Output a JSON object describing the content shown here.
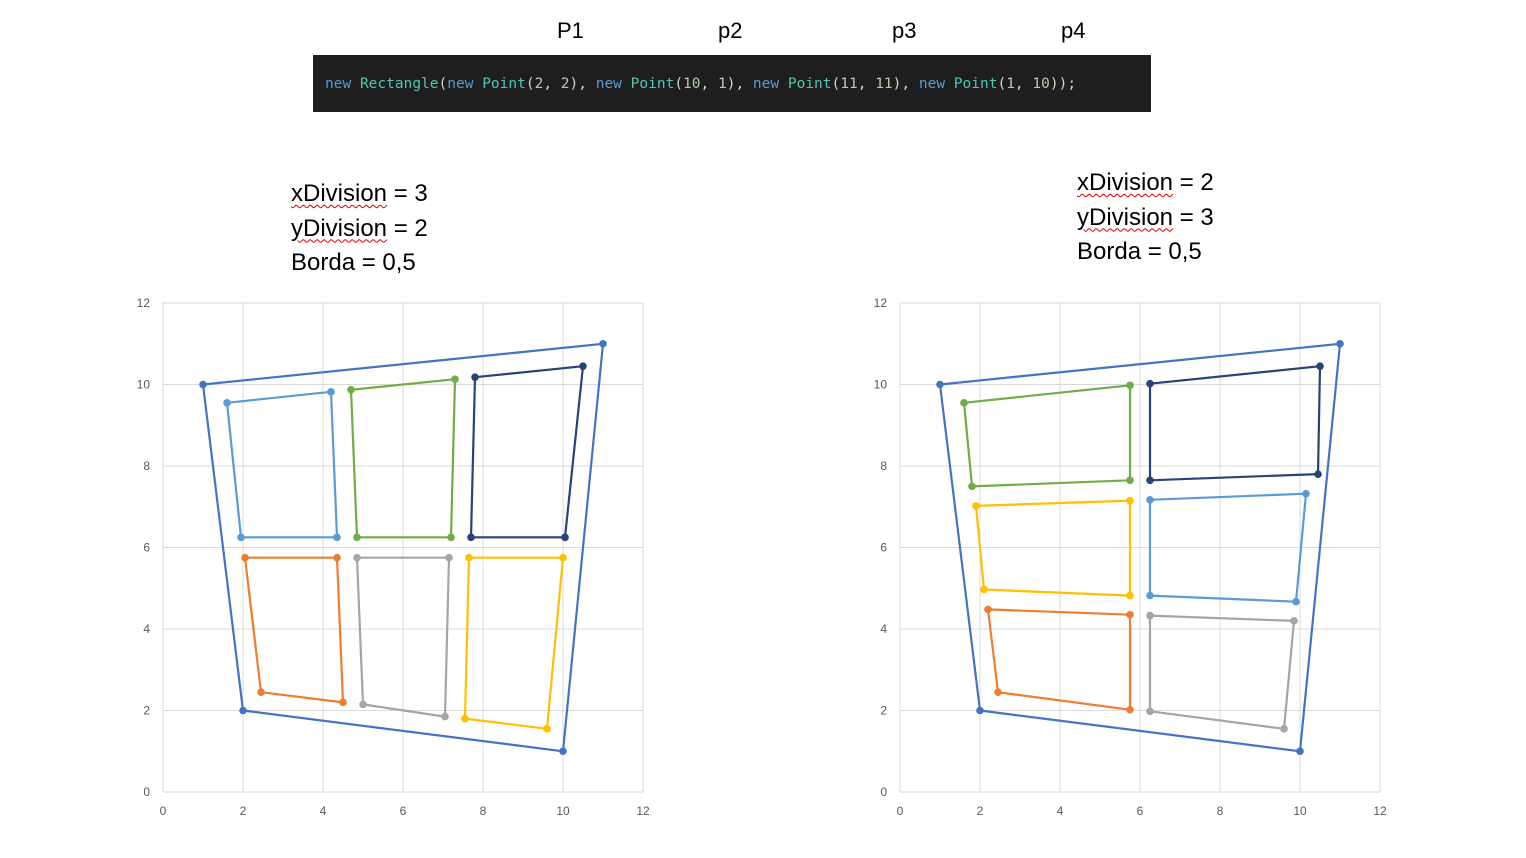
{
  "point_labels": [
    "P1",
    "p2",
    "p3",
    "p4"
  ],
  "code": [
    {
      "text": "new",
      "color": "#569cd6"
    },
    {
      "text": " ",
      "color": "#d4d4d4"
    },
    {
      "text": "Rectangle",
      "color": "#4ec9b0"
    },
    {
      "text": "(",
      "color": "#d4d4d4"
    },
    {
      "text": "new",
      "color": "#569cd6"
    },
    {
      "text": " ",
      "color": "#d4d4d4"
    },
    {
      "text": "Point",
      "color": "#4ec9b0"
    },
    {
      "text": "(",
      "color": "#d4d4d4"
    },
    {
      "text": "2",
      "color": "#b5cea8"
    },
    {
      "text": ", ",
      "color": "#d4d4d4"
    },
    {
      "text": "2",
      "color": "#b5cea8"
    },
    {
      "text": "), ",
      "color": "#d4d4d4"
    },
    {
      "text": "new",
      "color": "#569cd6"
    },
    {
      "text": " ",
      "color": "#d4d4d4"
    },
    {
      "text": "Point",
      "color": "#4ec9b0"
    },
    {
      "text": "(",
      "color": "#d4d4d4"
    },
    {
      "text": "10",
      "color": "#b5cea8"
    },
    {
      "text": ", ",
      "color": "#d4d4d4"
    },
    {
      "text": "1",
      "color": "#b5cea8"
    },
    {
      "text": "), ",
      "color": "#d4d4d4"
    },
    {
      "text": "new",
      "color": "#569cd6"
    },
    {
      "text": " ",
      "color": "#d4d4d4"
    },
    {
      "text": "Point",
      "color": "#4ec9b0"
    },
    {
      "text": "(",
      "color": "#d4d4d4"
    },
    {
      "text": "11",
      "color": "#b5cea8"
    },
    {
      "text": ", ",
      "color": "#d4d4d4"
    },
    {
      "text": "11",
      "color": "#b5cea8"
    },
    {
      "text": "), ",
      "color": "#d4d4d4"
    },
    {
      "text": "new",
      "color": "#569cd6"
    },
    {
      "text": " ",
      "color": "#d4d4d4"
    },
    {
      "text": "Point",
      "color": "#4ec9b0"
    },
    {
      "text": "(",
      "color": "#d4d4d4"
    },
    {
      "text": "1",
      "color": "#b5cea8"
    },
    {
      "text": ", ",
      "color": "#d4d4d4"
    },
    {
      "text": "10",
      "color": "#b5cea8"
    },
    {
      "text": "));",
      "color": "#d4d4d4"
    }
  ],
  "left_params": {
    "line1_var": "xDivision",
    "line1_rest": " = 3",
    "line2_var": "yDivision",
    "line2_rest": " = 2",
    "line3": "Borda = 0,5"
  },
  "right_params": {
    "line1_var": "xDivision",
    "line1_rest": " = 2",
    "line2_var": "yDivision",
    "line2_rest": " = 3",
    "line3": "Borda = 0,5"
  },
  "chart_data": [
    {
      "type": "scatter",
      "xlim": [
        0,
        12
      ],
      "ylim": [
        0,
        12
      ],
      "xticks": [
        0,
        2,
        4,
        6,
        8,
        10,
        12
      ],
      "yticks": [
        0,
        2,
        4,
        6,
        8,
        10,
        12
      ],
      "grid": true,
      "series": [
        {
          "color": "#4472c4",
          "points": [
            [
              1,
              10
            ],
            [
              11,
              11
            ],
            [
              10,
              1
            ],
            [
              2,
              2
            ],
            [
              1,
              10
            ]
          ]
        },
        {
          "color": "#5b9bd5",
          "points": [
            [
              1.6,
              9.55
            ],
            [
              4.2,
              9.82
            ],
            [
              4.35,
              6.25
            ],
            [
              1.95,
              6.25
            ],
            [
              1.6,
              9.55
            ]
          ]
        },
        {
          "color": "#70ad47",
          "points": [
            [
              4.7,
              9.87
            ],
            [
              7.3,
              10.13
            ],
            [
              7.2,
              6.25
            ],
            [
              4.85,
              6.25
            ],
            [
              4.7,
              9.87
            ]
          ]
        },
        {
          "color": "#264478",
          "points": [
            [
              7.8,
              10.18
            ],
            [
              10.5,
              10.45
            ],
            [
              10.05,
              6.25
            ],
            [
              7.7,
              6.25
            ],
            [
              7.8,
              10.18
            ]
          ]
        },
        {
          "color": "#ed7d31",
          "points": [
            [
              2.05,
              5.75
            ],
            [
              4.35,
              5.75
            ],
            [
              4.5,
              2.2
            ],
            [
              2.45,
              2.45
            ],
            [
              2.05,
              5.75
            ]
          ]
        },
        {
          "color": "#a5a5a5",
          "points": [
            [
              4.85,
              5.75
            ],
            [
              7.15,
              5.75
            ],
            [
              7.05,
              1.85
            ],
            [
              5,
              2.15
            ],
            [
              4.85,
              5.75
            ]
          ]
        },
        {
          "color": "#ffc000",
          "points": [
            [
              7.65,
              5.75
            ],
            [
              10,
              5.75
            ],
            [
              9.6,
              1.55
            ],
            [
              7.55,
              1.8
            ],
            [
              7.65,
              5.75
            ]
          ]
        }
      ]
    },
    {
      "type": "scatter",
      "xlim": [
        0,
        12
      ],
      "ylim": [
        0,
        12
      ],
      "xticks": [
        0,
        2,
        4,
        6,
        8,
        10,
        12
      ],
      "yticks": [
        0,
        2,
        4,
        6,
        8,
        10,
        12
      ],
      "grid": true,
      "series": [
        {
          "color": "#4472c4",
          "points": [
            [
              1,
              10
            ],
            [
              11,
              11
            ],
            [
              10,
              1
            ],
            [
              2,
              2
            ],
            [
              1,
              10
            ]
          ]
        },
        {
          "color": "#70ad47",
          "points": [
            [
              1.6,
              9.55
            ],
            [
              5.75,
              9.98
            ],
            [
              5.75,
              7.65
            ],
            [
              1.8,
              7.5
            ],
            [
              1.6,
              9.55
            ]
          ]
        },
        {
          "color": "#264478",
          "points": [
            [
              6.25,
              10.02
            ],
            [
              10.5,
              10.45
            ],
            [
              10.45,
              7.8
            ],
            [
              6.25,
              7.65
            ],
            [
              6.25,
              10.02
            ]
          ]
        },
        {
          "color": "#ffc000",
          "points": [
            [
              1.9,
              7.02
            ],
            [
              5.75,
              7.15
            ],
            [
              5.75,
              4.82
            ],
            [
              2.1,
              4.97
            ],
            [
              1.9,
              7.02
            ]
          ]
        },
        {
          "color": "#5b9bd5",
          "points": [
            [
              6.25,
              7.17
            ],
            [
              10.15,
              7.32
            ],
            [
              9.9,
              4.67
            ],
            [
              6.25,
              4.82
            ],
            [
              6.25,
              7.17
            ]
          ]
        },
        {
          "color": "#ed7d31",
          "points": [
            [
              2.2,
              4.48
            ],
            [
              5.75,
              4.35
            ],
            [
              5.75,
              2.02
            ],
            [
              2.45,
              2.45
            ],
            [
              2.2,
              4.48
            ]
          ]
        },
        {
          "color": "#a5a5a5",
          "points": [
            [
              6.25,
              4.33
            ],
            [
              9.85,
              4.2
            ],
            [
              9.6,
              1.55
            ],
            [
              6.25,
              1.98
            ],
            [
              6.25,
              4.33
            ]
          ]
        }
      ]
    }
  ]
}
